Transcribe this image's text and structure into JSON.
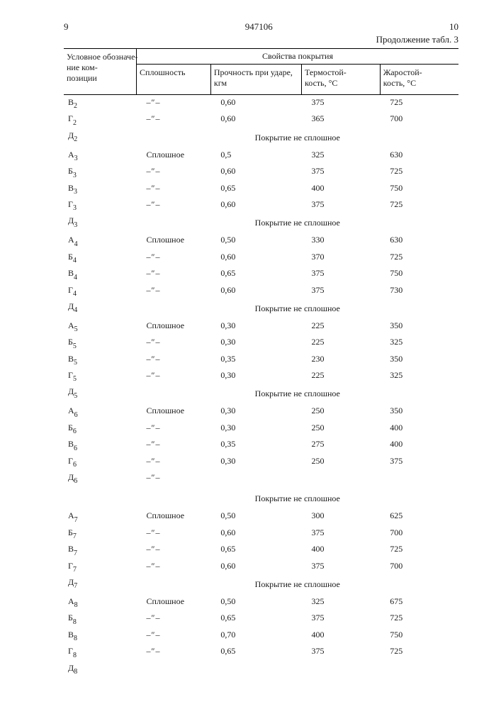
{
  "header": {
    "left_page": "9",
    "patent_number": "947106",
    "right_page": "10",
    "continuation": "Продолжение табл. 3"
  },
  "table": {
    "col_label": "Условное обозначе-\nние ком-\nпозиции",
    "props_header": "Свойства покрытия",
    "columns": {
      "c2": "Сплошность",
      "c3": "Прочность при ударе, кгм",
      "c4": "Термостой-\nкость, °С",
      "c5": "Жаростой-\nкость, °С"
    },
    "ditto": "–″–",
    "continuous": "Сплошное",
    "not_continuous": "Покрытие не сплошное",
    "groups": [
      {
        "rows": [
          {
            "d": "В",
            "s": "2",
            "c2": "ditto",
            "c3": "0,60",
            "c4": "375",
            "c5": "725"
          },
          {
            "d": "Г",
            "s": "2",
            "c2": "ditto",
            "c3": "0,60",
            "c4": "365",
            "c5": "700"
          }
        ],
        "span_d": "Д",
        "span_s": "2"
      },
      {
        "rows": [
          {
            "d": "А",
            "s": "3",
            "c2": "cont",
            "c3": "0,5",
            "c4": "325",
            "c5": "630"
          },
          {
            "d": "Б",
            "s": "3",
            "c2": "ditto",
            "c3": "0,60",
            "c4": "375",
            "c5": "725"
          },
          {
            "d": "В",
            "s": "3",
            "c2": "ditto",
            "c3": "0,65",
            "c4": "400",
            "c5": "750"
          },
          {
            "d": "Г",
            "s": "3",
            "c2": "ditto",
            "c3": "0,60",
            "c4": "375",
            "c5": "725"
          }
        ],
        "span_d": "Д",
        "span_s": "3"
      },
      {
        "rows": [
          {
            "d": "А",
            "s": "4",
            "c2": "cont",
            "c3": "0,50",
            "c4": "330",
            "c5": "630"
          },
          {
            "d": "Б",
            "s": "4",
            "c2": "ditto",
            "c3": "0,60",
            "c4": "370",
            "c5": "725"
          },
          {
            "d": "В",
            "s": "4",
            "c2": "ditto",
            "c3": "0,65",
            "c4": "375",
            "c5": "750"
          },
          {
            "d": "Г",
            "s": "4",
            "c2": "ditto",
            "c3": "0,60",
            "c4": "375",
            "c5": "730"
          }
        ],
        "span_d": "Д",
        "span_s": "4"
      },
      {
        "rows": [
          {
            "d": "А",
            "s": "5",
            "c2": "cont",
            "c3": "0,30",
            "c4": "225",
            "c5": "350"
          },
          {
            "d": "Б",
            "s": "5",
            "c2": "ditto",
            "c3": "0,30",
            "c4": "225",
            "c5": "325"
          },
          {
            "d": "В",
            "s": "5",
            "c2": "ditto",
            "c3": "0,35",
            "c4": "230",
            "c5": "350"
          },
          {
            "d": "Г",
            "s": "5",
            "c2": "ditto",
            "c3": "0,30",
            "c4": "225",
            "c5": "325"
          }
        ],
        "span_d": "Д",
        "span_s": "5"
      },
      {
        "rows": [
          {
            "d": "А",
            "s": "6",
            "c2": "cont",
            "c3": "0,30",
            "c4": "250",
            "c5": "350"
          },
          {
            "d": "Б",
            "s": "6",
            "c2": "ditto",
            "c3": "0,30",
            "c4": "250",
            "c5": "400"
          },
          {
            "d": "В",
            "s": "6",
            "c2": "ditto",
            "c3": "0,35",
            "c4": "275",
            "c5": "400"
          },
          {
            "d": "Г",
            "s": "6",
            "c2": "ditto",
            "c3": "0,30",
            "c4": "250",
            "c5": "375"
          },
          {
            "d": "Д",
            "s": "6",
            "c2": "ditto",
            "c3": "",
            "c4": "",
            "c5": ""
          }
        ],
        "span_d": "",
        "span_s": "",
        "span_extra_gap": true
      },
      {
        "rows": [
          {
            "d": "А",
            "s": "7",
            "c2": "cont",
            "c3": "0,50",
            "c4": "300",
            "c5": "625"
          },
          {
            "d": "Б",
            "s": "7",
            "c2": "ditto",
            "c3": "0,60",
            "c4": "375",
            "c5": "700"
          },
          {
            "d": "В",
            "s": "7",
            "c2": "ditto",
            "c3": "0,65",
            "c4": "400",
            "c5": "725"
          },
          {
            "d": "Г",
            "s": "7",
            "c2": "ditto",
            "c3": "0,60",
            "c4": "375",
            "c5": "700"
          }
        ],
        "span_d": "Д",
        "span_s": "7"
      },
      {
        "rows": [
          {
            "d": "А",
            "s": "8",
            "c2": "cont",
            "c3": "0,50",
            "c4": "325",
            "c5": "675"
          },
          {
            "d": "Б",
            "s": "8",
            "c2": "ditto",
            "c3": "0,65",
            "c4": "375",
            "c5": "725"
          },
          {
            "d": "В",
            "s": "8",
            "c2": "ditto",
            "c3": "0,70",
            "c4": "400",
            "c5": "750"
          },
          {
            "d": "Г",
            "s": "8",
            "c2": "ditto",
            "c3": "0,65",
            "c4": "375",
            "c5": "725"
          },
          {
            "d": "Д",
            "s": "8",
            "c2": "",
            "c3": "",
            "c4": "",
            "c5": ""
          }
        ],
        "no_span": true
      }
    ]
  }
}
